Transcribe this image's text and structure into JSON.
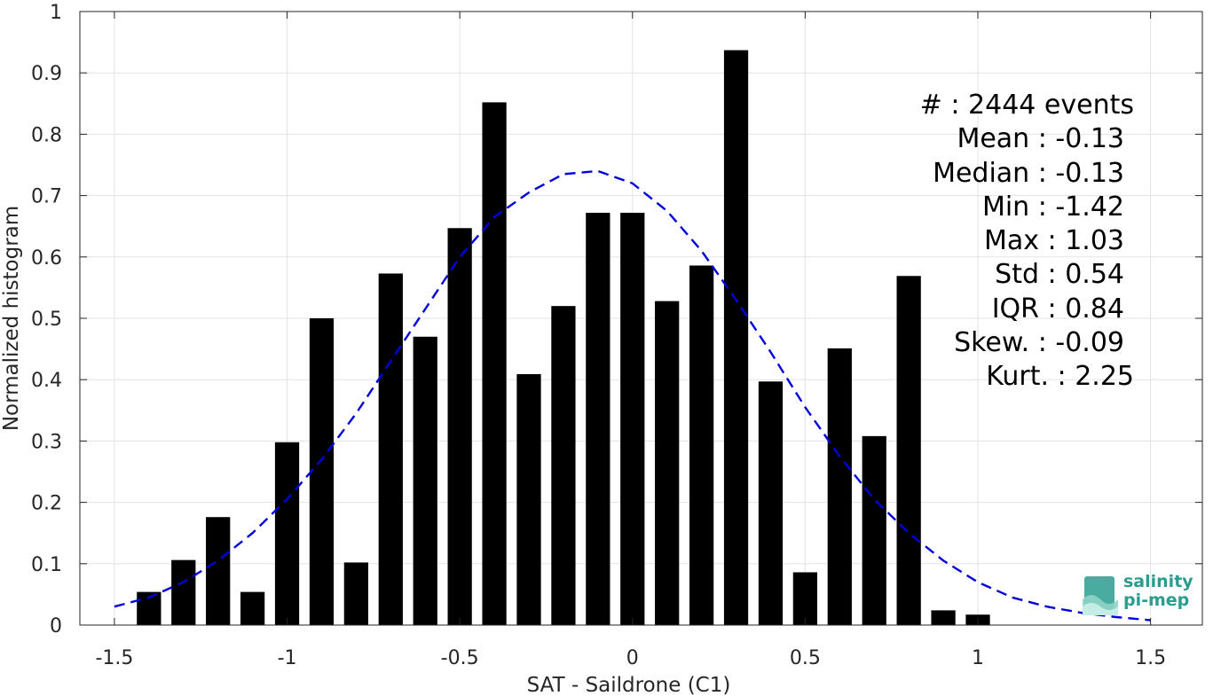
{
  "chart_data": {
    "type": "bar",
    "xlabel": "SAT - Saildrone (C1)",
    "ylabel": "Normalized histogram",
    "xlim": [
      -1.6,
      1.65
    ],
    "ylim": [
      0,
      1
    ],
    "xticks": [
      -1.5,
      -1,
      -0.5,
      0,
      0.5,
      1,
      1.5
    ],
    "xtick_labels": [
      "-1.5",
      "-1",
      "-0.5",
      "0",
      "0.5",
      "1",
      "1.5"
    ],
    "yticks": [
      0,
      0.1,
      0.2,
      0.3,
      0.4,
      0.5,
      0.6,
      0.7,
      0.8,
      0.9,
      1
    ],
    "ytick_labels": [
      "0",
      "0.1",
      "0.2",
      "0.3",
      "0.4",
      "0.5",
      "0.6",
      "0.7",
      "0.8",
      "0.9",
      "1"
    ],
    "grid": true,
    "bar_color": "#000000",
    "bar_width": 0.07,
    "series": [
      {
        "x": [
          -1.4,
          -1.3,
          -1.2,
          -1.1,
          -1.0,
          -0.9,
          -0.8,
          -0.7,
          -0.6,
          -0.5,
          -0.4,
          -0.3,
          -0.2,
          -0.1,
          0.0,
          0.1,
          0.2,
          0.3,
          0.4,
          0.5,
          0.6,
          0.7,
          0.8,
          0.9,
          1.0
        ],
        "values": [
          0.054,
          0.106,
          0.176,
          0.054,
          0.298,
          0.5,
          0.102,
          0.573,
          0.47,
          0.647,
          0.852,
          0.409,
          0.52,
          0.672,
          0.672,
          0.528,
          0.586,
          0.937,
          0.397,
          0.086,
          0.451,
          0.308,
          0.569,
          0.024,
          0.017
        ]
      }
    ],
    "fit_curve": {
      "type": "line",
      "style": "dashed",
      "color": "#0000dd",
      "x": [
        -1.5,
        -1.4,
        -1.3,
        -1.2,
        -1.1,
        -1.0,
        -0.9,
        -0.8,
        -0.7,
        -0.6,
        -0.5,
        -0.4,
        -0.3,
        -0.2,
        -0.1,
        0.0,
        0.1,
        0.2,
        0.3,
        0.4,
        0.5,
        0.6,
        0.7,
        0.8,
        0.9,
        1.0,
        1.1,
        1.2,
        1.3,
        1.4,
        1.5
      ],
      "y": [
        0.03,
        0.045,
        0.07,
        0.105,
        0.15,
        0.205,
        0.27,
        0.345,
        0.43,
        0.515,
        0.6,
        0.665,
        0.705,
        0.735,
        0.74,
        0.72,
        0.675,
        0.61,
        0.53,
        0.445,
        0.355,
        0.275,
        0.205,
        0.15,
        0.105,
        0.07,
        0.045,
        0.03,
        0.02,
        0.013,
        0.008
      ]
    }
  },
  "stats": {
    "events": "#  : 2444 events",
    "mean": "Mean : -0.13",
    "median": "Median : -0.13",
    "min": "Min : -1.42",
    "max": "Max : 1.03",
    "std": "Std : 0.54",
    "iqr": "IQR : 0.84",
    "skew": "Skew. : -0.09",
    "kurt": "Kurt. : 2.25"
  },
  "logo": {
    "line1": "salinity",
    "line2": "pi-mep",
    "color": "#2a9d8f"
  }
}
